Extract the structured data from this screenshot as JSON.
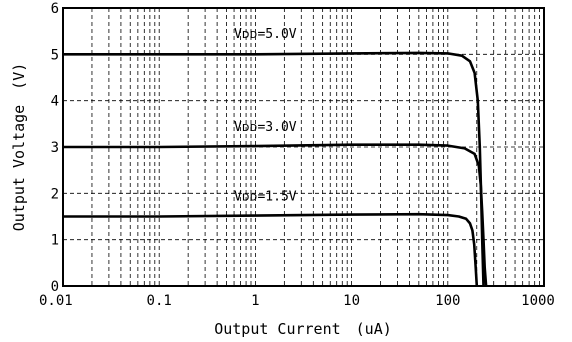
{
  "chart_data": {
    "type": "line",
    "xlabel": "Output Current　(uA)",
    "ylabel": "Output Voltage　(V)",
    "xscale": "log",
    "xlim": [
      0.01,
      1000
    ],
    "ylim": [
      0,
      6
    ],
    "x_ticks": [
      "0.01",
      "0.1",
      "1",
      "10",
      "100",
      "1000"
    ],
    "y_ticks": [
      "0",
      "1",
      "2",
      "3",
      "4",
      "5",
      "6"
    ],
    "grid": true,
    "annotations": [
      {
        "text": "Vᴅᴅ=5.0V",
        "x": 0.6,
        "y": 5.35
      },
      {
        "text": "Vᴅᴅ=3.0V",
        "x": 0.6,
        "y": 3.35
      },
      {
        "text": "Vᴅᴅ=1.5V",
        "x": 0.6,
        "y": 1.85
      }
    ],
    "series": [
      {
        "x": [
          0.01,
          0.1,
          1,
          10,
          50,
          100,
          140,
          170,
          190,
          205,
          215,
          222,
          228,
          235
        ],
        "y": [
          5.0,
          5.0,
          5.0,
          5.02,
          5.03,
          5.02,
          4.97,
          4.85,
          4.6,
          4.0,
          3.0,
          2.0,
          1.0,
          0.0
        ]
      },
      {
        "x": [
          0.01,
          0.1,
          1,
          10,
          50,
          100,
          150,
          190,
          210,
          220,
          228,
          235,
          242,
          250
        ],
        "y": [
          3.0,
          3.0,
          3.02,
          3.05,
          3.05,
          3.03,
          2.97,
          2.85,
          2.6,
          2.2,
          1.6,
          1.0,
          0.4,
          0.0
        ]
      },
      {
        "x": [
          0.01,
          0.1,
          1,
          10,
          50,
          100,
          130,
          155,
          170,
          180,
          188,
          195,
          200
        ],
        "y": [
          1.5,
          1.5,
          1.52,
          1.54,
          1.55,
          1.53,
          1.5,
          1.45,
          1.35,
          1.2,
          0.9,
          0.4,
          0.0
        ]
      }
    ]
  }
}
